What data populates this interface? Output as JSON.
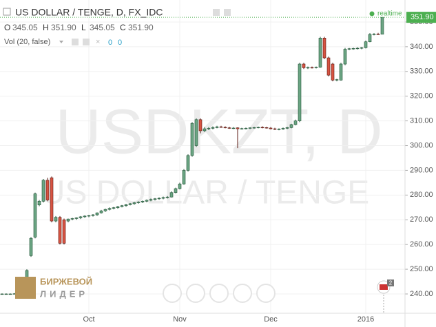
{
  "chart_data": {
    "type": "candlestick",
    "title": "US DOLLAR / TENGE, D, FX_IDC",
    "watermark": "USDKZT, D",
    "watermark_subtitle": "US DOLLAR / TENGE",
    "ohlc_labels": [
      "O",
      "H",
      "L",
      "C"
    ],
    "ohlc_values": [
      345.05,
      351.9,
      345.05,
      351.9
    ],
    "ohlc_value_labels": [
      "345.05",
      "351.90",
      "345.05",
      "351.90"
    ],
    "volume_label": "Vol (20, false)",
    "volume_values": [
      0,
      0
    ],
    "realtime_label": "realtime",
    "last_price": {
      "value": 351.9,
      "label": "351.90"
    },
    "logo_top": "БИРЖЕВОЙ",
    "logo_bottom": "ЛИДЕР",
    "flag_count": 2,
    "up_color": "#6ba583",
    "down_color": "#d75442",
    "grid": true,
    "ylim": [
      232.2,
      358.9
    ],
    "yticks": [
      {
        "value": 240,
        "label": "240.00"
      },
      {
        "value": 250,
        "label": "250.00"
      },
      {
        "value": 260,
        "label": "260.00"
      },
      {
        "value": 270,
        "label": "270.00"
      },
      {
        "value": 280,
        "label": "280.00"
      },
      {
        "value": 290,
        "label": "290.00"
      },
      {
        "value": 300,
        "label": "300.00"
      },
      {
        "value": 310,
        "label": "310.00"
      },
      {
        "value": 320,
        "label": "320.00"
      },
      {
        "value": 330,
        "label": "330.00"
      },
      {
        "value": 340,
        "label": "340.00"
      },
      {
        "value": 350,
        "label": "350.00"
      }
    ],
    "categories": [
      null,
      null,
      null,
      null,
      null,
      null,
      null,
      null,
      null,
      null,
      null,
      null,
      null,
      null,
      null,
      null,
      null,
      null,
      null,
      null,
      null,
      "Oct",
      null,
      null,
      null,
      null,
      null,
      null,
      null,
      null,
      null,
      null,
      null,
      null,
      null,
      null,
      null,
      null,
      null,
      null,
      null,
      null,
      null,
      "Nov",
      null,
      null,
      null,
      null,
      null,
      null,
      null,
      null,
      null,
      null,
      null,
      null,
      null,
      null,
      null,
      null,
      null,
      null,
      null,
      null,
      null,
      "Dec",
      null,
      null,
      null,
      null,
      null,
      null,
      null,
      null,
      null,
      null,
      null,
      null,
      null,
      null,
      null,
      null,
      null,
      null,
      null,
      null,
      null,
      null,
      "2016",
      null,
      null,
      null,
      null
    ],
    "open": [
      240,
      240,
      240,
      240,
      240.1,
      241.3,
      244.2,
      255.5,
      263,
      276,
      277.5,
      286,
      287,
      269.5,
      271,
      270,
      269.5,
      270.3,
      270.5,
      270.8,
      271.2,
      271.5,
      271.7,
      272,
      272.8,
      273.6,
      274.2,
      274.6,
      274.9,
      275.3,
      275.7,
      276.1,
      276.5,
      276.9,
      277.2,
      277.5,
      277.9,
      278.2,
      278.5,
      278.7,
      279,
      279.2,
      281,
      282.6,
      284.5,
      290,
      296,
      300,
      310.5,
      306,
      306.8,
      307,
      307.3,
      307.6,
      307.4,
      307.2,
      307,
      307.2,
      306.8,
      306.9,
      307,
      307.2,
      307.3,
      307.4,
      307.3,
      307.1,
      306.8,
      306.6,
      306.7,
      307,
      307.3,
      308.5,
      310,
      333,
      331.5,
      331.6,
      331.5,
      331.7,
      343.5,
      335.5,
      333,
      326.5,
      326.5,
      333,
      339,
      339.2,
      339.3,
      339.4,
      339.6,
      342,
      345,
      345.1,
      345.05
    ],
    "high": [
      240.2,
      240.2,
      240.2,
      240.3,
      241.5,
      244.5,
      250,
      263,
      281,
      278,
      286.5,
      287,
      287.5,
      271.5,
      271.5,
      270.5,
      270.5,
      270.8,
      271,
      271.5,
      271.8,
      272,
      272.3,
      273,
      274,
      274.5,
      275,
      275.2,
      275.6,
      276,
      276.4,
      276.8,
      277.2,
      277.5,
      277.8,
      278.2,
      278.6,
      278.8,
      279.1,
      279.4,
      279.6,
      281.5,
      283,
      285,
      290.5,
      296.5,
      309.5,
      311,
      311,
      307.5,
      307.5,
      307.8,
      308,
      308,
      307.8,
      307.6,
      307.5,
      307.4,
      307.2,
      307.3,
      307.4,
      307.6,
      307.7,
      307.8,
      307.6,
      307.5,
      307.2,
      307,
      307.3,
      307.6,
      308.8,
      310.5,
      333.5,
      333.5,
      332,
      332,
      332,
      344,
      344,
      336,
      333.5,
      327,
      333.5,
      339.5,
      339.5,
      339.6,
      339.8,
      339.9,
      342.5,
      345.5,
      345.5,
      345.6,
      351.9
    ],
    "low": [
      239.8,
      239.8,
      239.8,
      239.9,
      240,
      241,
      244,
      255,
      262.5,
      275.5,
      277,
      277.5,
      269,
      269,
      260,
      260,
      269,
      269.8,
      270,
      270.3,
      270.8,
      271,
      271.3,
      271.6,
      272.5,
      273.2,
      273.8,
      274.2,
      274.5,
      275,
      275.3,
      275.8,
      276.1,
      276.5,
      276.8,
      277.1,
      277.5,
      277.8,
      278.1,
      278.3,
      278.6,
      279,
      280.7,
      282.3,
      284.2,
      289.5,
      295.5,
      299.5,
      305,
      305.5,
      306.3,
      306.6,
      307,
      307.2,
      307,
      306.8,
      306.7,
      299,
      306.5,
      306.6,
      306.7,
      306.9,
      307,
      307,
      306.9,
      306.6,
      306.3,
      306.2,
      306.4,
      306.7,
      307,
      308.2,
      309.5,
      331,
      331,
      331.2,
      331.2,
      331.5,
      335,
      328,
      326,
      326,
      326.3,
      332.5,
      338.6,
      338.8,
      338.9,
      339,
      339.3,
      341.8,
      344.6,
      344.8,
      345.05
    ],
    "close": [
      240,
      240,
      240,
      240.1,
      241.3,
      244.2,
      249.5,
      262.5,
      280.5,
      277.5,
      286,
      278,
      269.5,
      271,
      260.5,
      260.5,
      270.3,
      270.5,
      270.8,
      271.2,
      271.5,
      271.7,
      272,
      272.8,
      273.6,
      274.2,
      274.6,
      274.9,
      275.3,
      275.7,
      276.1,
      276.5,
      276.9,
      277.2,
      277.5,
      277.9,
      278.2,
      278.5,
      278.7,
      279,
      279.2,
      281,
      282.6,
      284.5,
      290,
      296,
      309,
      310.5,
      306,
      306.8,
      307,
      307.3,
      307.6,
      307.4,
      307.2,
      307,
      307.1,
      306.8,
      306.9,
      307,
      307.2,
      307.3,
      307.4,
      307.3,
      307.1,
      306.8,
      306.6,
      306.7,
      307,
      307.3,
      308.5,
      310,
      333,
      331.5,
      331.6,
      331.5,
      331.7,
      343.5,
      335.5,
      328.5,
      326.5,
      326.7,
      333,
      339,
      339.2,
      339.3,
      339.4,
      339.6,
      342,
      345,
      345.1,
      345.05,
      351.9
    ]
  }
}
